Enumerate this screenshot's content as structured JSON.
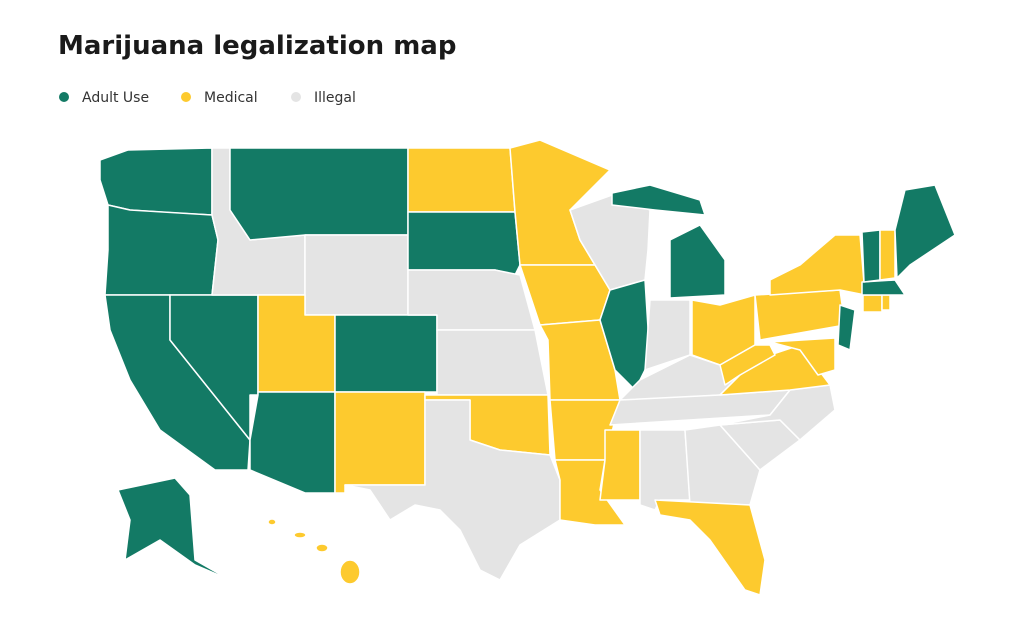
{
  "title": "Marijuana legalization map",
  "legend": [
    {
      "label": "Adult Use",
      "color": "#137a65"
    },
    {
      "label": "Medical",
      "color": "#fdca2e"
    },
    {
      "label": "Illegal",
      "color": "#e4e4e4"
    }
  ]
}
